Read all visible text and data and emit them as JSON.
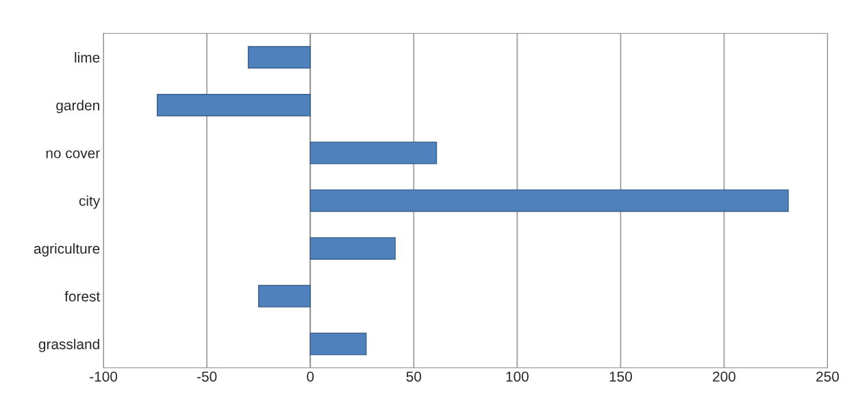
{
  "chart_data": {
    "type": "bar",
    "orientation": "horizontal",
    "categories": [
      "lime",
      "garden",
      "no cover",
      "city",
      "agriculture",
      "forest",
      "grassland"
    ],
    "values": [
      -30,
      -74,
      61,
      231,
      41,
      -25,
      27
    ],
    "color": "#4f81bd",
    "xlim": [
      -100,
      250
    ],
    "xticks": [
      -100,
      -50,
      0,
      50,
      100,
      150,
      200,
      250
    ],
    "grid": "x"
  }
}
